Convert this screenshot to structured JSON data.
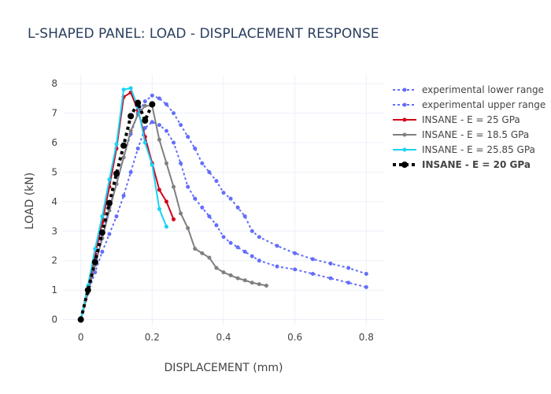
{
  "chart_data": {
    "type": "line",
    "title": "L-SHAPED PANEL: LOAD - DISPLACEMENT RESPONSE",
    "xlabel": "DISPLACEMENT (mm)",
    "ylabel": "LOAD (kN)",
    "xlim": [
      -0.05,
      0.85
    ],
    "ylim": [
      -0.2,
      8.3
    ],
    "x_ticks": [
      0,
      0.2,
      0.4,
      0.6,
      0.8
    ],
    "x_tick_labels": [
      "0",
      "0.2",
      "0.4",
      "0.6",
      "0.8"
    ],
    "y_ticks": [
      0,
      1,
      2,
      3,
      4,
      5,
      6,
      7,
      8
    ],
    "y_tick_labels": [
      "0",
      "1",
      "2",
      "3",
      "4",
      "5",
      "6",
      "7",
      "8"
    ],
    "grid": true,
    "legend_position": "top-right",
    "series": [
      {
        "name": "experimental lower range",
        "color": "#636efa",
        "dash": "dot",
        "width": 2,
        "marker_size": 4,
        "bold": false,
        "x": [
          0,
          0.02,
          0.04,
          0.06,
          0.08,
          0.1,
          0.12,
          0.14,
          0.16,
          0.18,
          0.2,
          0.22,
          0.24,
          0.26,
          0.28,
          0.3,
          0.32,
          0.34,
          0.36,
          0.38,
          0.4,
          0.42,
          0.44,
          0.46,
          0.48,
          0.5,
          0.55,
          0.6,
          0.65,
          0.7,
          0.75,
          0.8
        ],
        "y": [
          0,
          0.9,
          1.6,
          2.3,
          2.9,
          3.5,
          4.2,
          5.0,
          5.8,
          6.5,
          6.7,
          6.6,
          6.4,
          6.0,
          5.3,
          4.5,
          4.1,
          3.8,
          3.5,
          3.2,
          2.8,
          2.6,
          2.45,
          2.3,
          2.15,
          2.0,
          1.8,
          1.7,
          1.55,
          1.4,
          1.25,
          1.1
        ]
      },
      {
        "name": "experimental upper range",
        "color": "#636efa",
        "dash": "dot",
        "width": 2,
        "marker_size": 4,
        "bold": false,
        "x": [
          0,
          0.02,
          0.04,
          0.06,
          0.08,
          0.1,
          0.12,
          0.14,
          0.16,
          0.18,
          0.2,
          0.22,
          0.24,
          0.26,
          0.28,
          0.3,
          0.32,
          0.34,
          0.36,
          0.38,
          0.4,
          0.42,
          0.44,
          0.46,
          0.48,
          0.5,
          0.55,
          0.6,
          0.65,
          0.7,
          0.75,
          0.8
        ],
        "y": [
          0,
          1.0,
          2.0,
          2.9,
          3.8,
          4.6,
          5.5,
          6.3,
          7.0,
          7.4,
          7.6,
          7.5,
          7.3,
          7.0,
          6.6,
          6.2,
          5.8,
          5.3,
          5.0,
          4.7,
          4.3,
          4.1,
          3.8,
          3.5,
          3.0,
          2.8,
          2.5,
          2.25,
          2.05,
          1.9,
          1.75,
          1.55
        ]
      },
      {
        "name": "INSANE - E = 25 GPa",
        "color": "#d0021b",
        "dash": "solid",
        "width": 2,
        "marker_size": 4,
        "bold": false,
        "x": [
          0,
          0.02,
          0.04,
          0.06,
          0.08,
          0.1,
          0.12,
          0.14,
          0.16,
          0.18,
          0.2,
          0.22,
          0.24,
          0.26
        ],
        "y": [
          0,
          1.05,
          2.2,
          3.3,
          4.5,
          5.8,
          7.55,
          7.7,
          7.1,
          6.2,
          5.3,
          4.4,
          4.0,
          3.4
        ]
      },
      {
        "name": "INSANE - E = 18.5 GPa",
        "color": "#7f7f7f",
        "dash": "solid",
        "width": 2,
        "marker_size": 4,
        "bold": false,
        "x": [
          0,
          0.02,
          0.04,
          0.06,
          0.08,
          0.1,
          0.12,
          0.14,
          0.16,
          0.18,
          0.2,
          0.22,
          0.24,
          0.26,
          0.28,
          0.3,
          0.32,
          0.34,
          0.36,
          0.38,
          0.4,
          0.42,
          0.44,
          0.46,
          0.48,
          0.5,
          0.52
        ],
        "y": [
          0,
          0.9,
          1.85,
          2.75,
          3.7,
          4.6,
          5.5,
          6.4,
          6.95,
          7.25,
          7.25,
          6.1,
          5.3,
          4.5,
          3.6,
          3.1,
          2.4,
          2.25,
          2.1,
          1.75,
          1.6,
          1.5,
          1.4,
          1.33,
          1.25,
          1.2,
          1.15
        ]
      },
      {
        "name": "INSANE - E = 25.85 GPa",
        "color": "#19d3f3",
        "dash": "solid",
        "width": 2,
        "marker_size": 4,
        "bold": false,
        "x": [
          0,
          0.02,
          0.04,
          0.06,
          0.08,
          0.1,
          0.12,
          0.14,
          0.16,
          0.18,
          0.2,
          0.22,
          0.24
        ],
        "y": [
          0,
          1.15,
          2.4,
          3.5,
          4.75,
          5.95,
          7.8,
          7.85,
          7.2,
          6.0,
          5.25,
          3.75,
          3.15
        ]
      },
      {
        "name": "INSANE - E = 20 GPa",
        "color": "#000000",
        "dash": "dot",
        "width": 4,
        "marker_size": 7,
        "bold": true,
        "x": [
          0,
          0.02,
          0.04,
          0.06,
          0.08,
          0.1,
          0.12,
          0.14,
          0.16,
          0.18,
          0.2
        ],
        "y": [
          0,
          1.0,
          1.95,
          2.95,
          3.95,
          4.95,
          5.9,
          6.9,
          7.35,
          6.75,
          7.3
        ]
      }
    ]
  }
}
